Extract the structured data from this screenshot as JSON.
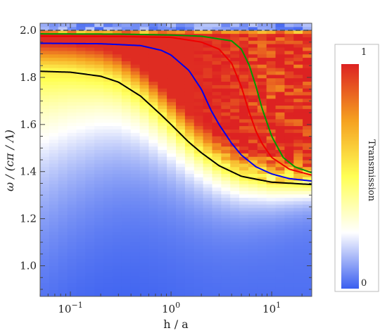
{
  "chart_data": {
    "type": "heatmap",
    "xlabel": "h / a",
    "ylabel": "ω / (cπ / Λ)",
    "x_scale": "log",
    "xlim": [
      0.05,
      25
    ],
    "ylim": [
      0.87,
      2.03
    ],
    "x_ticks": [
      {
        "value": 0.1,
        "base": "10",
        "exp": "−1"
      },
      {
        "value": 1,
        "base": "10",
        "exp": "0"
      },
      {
        "value": 10,
        "base": "10",
        "exp": "1"
      }
    ],
    "y_ticks": [
      {
        "value": 1.0,
        "label": "1.0"
      },
      {
        "value": 1.2,
        "label": "1.2"
      },
      {
        "value": 1.4,
        "label": "1.4"
      },
      {
        "value": 1.6,
        "label": "1.6"
      },
      {
        "value": 1.8,
        "label": "1.8"
      },
      {
        "value": 2.0,
        "label": "2.0"
      }
    ],
    "dashed_reference_line": {
      "y": 2.0,
      "color": "#555555"
    },
    "colorbar": {
      "label": "Transmission",
      "min_label": "0",
      "max_label": "1",
      "stops": [
        "#3a5ff0",
        "#ffffff",
        "#ffff55",
        "#f5a020",
        "#dd2222"
      ]
    },
    "series": [
      {
        "color": "#000000",
        "values": [
          [
            0.05,
            1.826
          ],
          [
            0.1,
            1.822
          ],
          [
            0.2,
            1.805
          ],
          [
            0.3,
            1.78
          ],
          [
            0.5,
            1.72
          ],
          [
            0.8,
            1.64
          ],
          [
            1,
            1.6
          ],
          [
            1.5,
            1.525
          ],
          [
            2,
            1.48
          ],
          [
            3,
            1.425
          ],
          [
            5,
            1.38
          ],
          [
            10,
            1.355
          ],
          [
            25,
            1.345
          ]
        ]
      },
      {
        "color": "#0000ee",
        "values": [
          [
            0.05,
            1.945
          ],
          [
            0.2,
            1.943
          ],
          [
            0.5,
            1.935
          ],
          [
            0.8,
            1.915
          ],
          [
            1,
            1.895
          ],
          [
            1.5,
            1.83
          ],
          [
            2,
            1.75
          ],
          [
            2.5,
            1.66
          ],
          [
            3,
            1.6
          ],
          [
            4,
            1.52
          ],
          [
            5,
            1.47
          ],
          [
            7,
            1.42
          ],
          [
            10,
            1.39
          ],
          [
            15,
            1.37
          ],
          [
            25,
            1.36
          ]
        ]
      },
      {
        "color": "#ee0000",
        "values": [
          [
            0.05,
            1.975
          ],
          [
            0.3,
            1.974
          ],
          [
            1,
            1.97
          ],
          [
            2,
            1.95
          ],
          [
            3,
            1.92
          ],
          [
            4,
            1.86
          ],
          [
            5,
            1.76
          ],
          [
            6,
            1.65
          ],
          [
            7,
            1.57
          ],
          [
            8,
            1.52
          ],
          [
            10,
            1.46
          ],
          [
            15,
            1.41
          ],
          [
            25,
            1.385
          ]
        ]
      },
      {
        "color": "#009900",
        "values": [
          [
            0.05,
            1.985
          ],
          [
            0.3,
            1.984
          ],
          [
            1,
            1.98
          ],
          [
            2,
            1.975
          ],
          [
            4,
            1.955
          ],
          [
            5,
            1.92
          ],
          [
            6,
            1.85
          ],
          [
            7,
            1.76
          ],
          [
            8,
            1.67
          ],
          [
            10,
            1.55
          ],
          [
            13,
            1.46
          ],
          [
            17,
            1.42
          ],
          [
            25,
            1.395
          ]
        ]
      }
    ]
  }
}
